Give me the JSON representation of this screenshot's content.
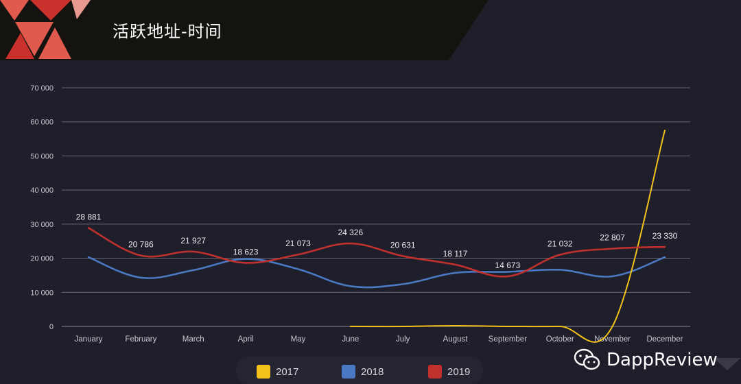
{
  "header": {
    "title": "活跃地址-时间"
  },
  "watermark": {
    "text": "DappReview",
    "icon": "wechat-icon"
  },
  "colors": {
    "background": "#1f1f2b",
    "banner": "#15130f",
    "grid": "#5a5a66",
    "axis_text": "#c9c9d2",
    "series_2017": "#f2c21b",
    "series_2018": "#4a78c2",
    "series_2019": "#c0302c",
    "logo_red": "#c9312d",
    "logo_light": "#e05a4e"
  },
  "chart_data": {
    "type": "line",
    "title": "活跃地址-时间",
    "categories": [
      "January",
      "February",
      "March",
      "April",
      "May",
      "June",
      "July",
      "August",
      "September",
      "October",
      "November",
      "December"
    ],
    "ylim": [
      0,
      70000
    ],
    "yticks": [
      "0",
      "10 000",
      "20 000",
      "30 000",
      "40 000",
      "50 000",
      "60 000",
      "70 000"
    ],
    "grid": true,
    "legend_position": "bottom",
    "series": [
      {
        "name": "2017",
        "color": "#f2c21b",
        "values": [
          null,
          null,
          null,
          null,
          null,
          0,
          0,
          200,
          0,
          0,
          0,
          57500
        ]
      },
      {
        "name": "2018",
        "color": "#4a78c2",
        "values": [
          20300,
          14300,
          16500,
          19800,
          16800,
          11800,
          12400,
          15700,
          16000,
          16600,
          14700,
          20300
        ]
      },
      {
        "name": "2019",
        "color": "#c0302c",
        "values": [
          28881,
          20786,
          21927,
          18623,
          21073,
          24326,
          20631,
          18117,
          14673,
          21032,
          22807,
          23330
        ],
        "labels": [
          "28 881",
          "20 786",
          "21 927",
          "18 623",
          "21 073",
          "24 326",
          "20 631",
          "18 117",
          "14 673",
          "21 032",
          "22 807",
          "23 330"
        ]
      }
    ]
  }
}
